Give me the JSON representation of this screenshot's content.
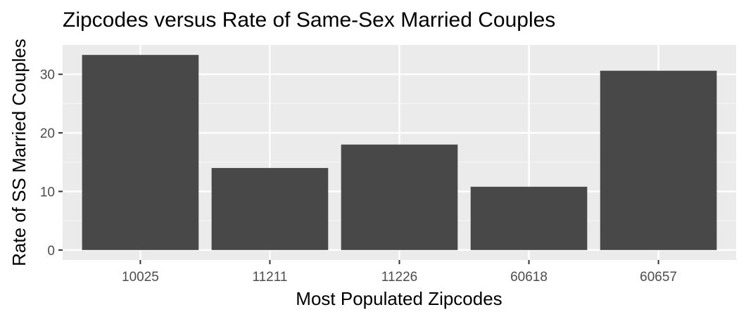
{
  "chart_data": {
    "type": "bar",
    "title": "Zipcodes versus Rate of Same-Sex Married Couples",
    "xlabel": "Most Populated Zipcodes",
    "ylabel": "Rate of SS Married Couples",
    "categories": [
      "10025",
      "11211",
      "11226",
      "60618",
      "60657"
    ],
    "values": [
      33.3,
      14.0,
      18.0,
      10.8,
      30.6
    ],
    "yticks": [
      0,
      10,
      20,
      30
    ],
    "ylim": [
      -1.7,
      35.0
    ],
    "grid": true,
    "legend": "none",
    "colors": {
      "bar": "#484848",
      "panel": "#ebebeb",
      "grid_major": "#ffffff",
      "grid_minor": "#f5f5f5",
      "tick": "#333333"
    }
  }
}
